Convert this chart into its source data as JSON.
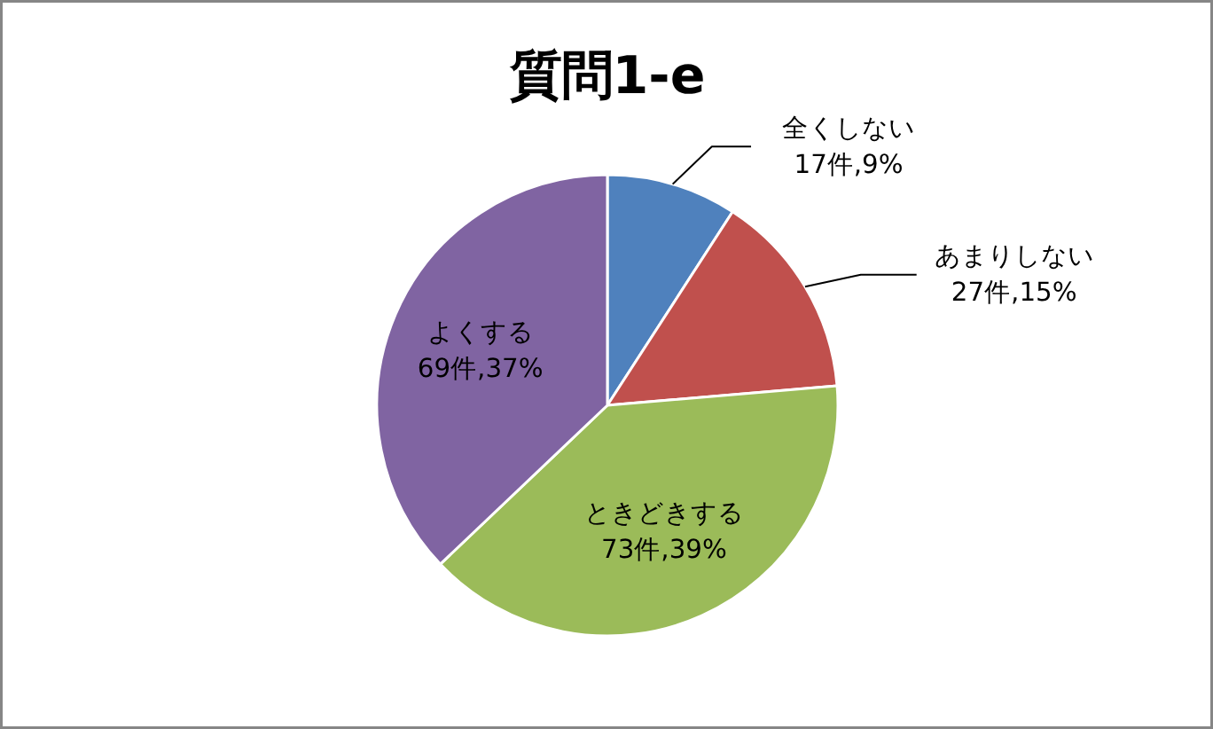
{
  "chart_data": {
    "type": "pie",
    "title": "質問1-e",
    "categories": [
      "全くしない",
      "あまりしない",
      "ときどきする",
      "よくする"
    ],
    "values": [
      17,
      27,
      73,
      69
    ],
    "value_labels": [
      "17件,9%",
      "27件,15%",
      "73件,39%",
      "69件,37%"
    ],
    "colors": [
      "#4f81bd",
      "#c0504d",
      "#9bbb59",
      "#8064a2"
    ]
  }
}
